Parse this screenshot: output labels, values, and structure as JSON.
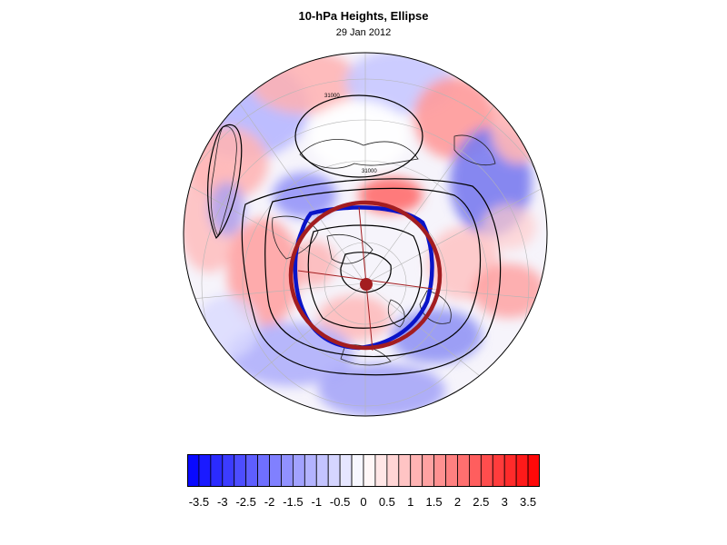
{
  "title": "10-hPa Heights, Ellipse",
  "subtitle": "29 Jan 2012",
  "colors": {
    "negative": "#0000ff",
    "positive": "#ff0000",
    "neutral": "#ffffff",
    "ellipse_fit": "#0a14c8",
    "ellipse_circle": "#a31d20",
    "contour": "#000000"
  },
  "map": {
    "projection": "polar-stereographic",
    "gridlines": true,
    "legend_placement": "bottom"
  },
  "colorbar": {
    "levels": [
      -3.75,
      -3.5,
      -3.25,
      -3,
      -2.75,
      -2.5,
      -2.25,
      -2,
      -1.75,
      -1.5,
      -1.25,
      -1,
      -0.75,
      -0.5,
      -0.25,
      0,
      0.25,
      0.5,
      0.75,
      1,
      1.25,
      1.5,
      1.75,
      2,
      2.25,
      2.5,
      2.75,
      3,
      3.25,
      3.5,
      3.75
    ],
    "labels": [
      "-3.5",
      "-3",
      "-2.5",
      "-2",
      "-1.5",
      "-1",
      "-0.5",
      "0",
      "0.5",
      "1",
      "1.5",
      "2",
      "2.5",
      "3",
      "3.5"
    ]
  },
  "contour_labels": [
    "31000",
    "31000"
  ]
}
